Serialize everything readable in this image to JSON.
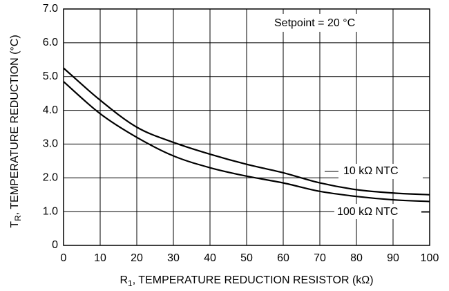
{
  "chart_data": {
    "type": "line",
    "annotation": "Setpoint = 20 °C",
    "x_label": {
      "main": "R",
      "sub": "1",
      "rest": ", TEMPERATURE REDUCTION RESISTOR (kΩ)"
    },
    "y_label": {
      "main": "T",
      "sub": "R",
      "rest": ", TEMPERATURE REDUCTION (°C)"
    },
    "x": [
      0,
      10,
      20,
      30,
      40,
      50,
      60,
      70,
      80,
      90,
      100
    ],
    "series": [
      {
        "name": "10 kΩ NTC",
        "color": "#000000",
        "values": [
          5.25,
          4.3,
          3.5,
          3.05,
          2.7,
          2.4,
          2.15,
          1.85,
          1.65,
          1.55,
          1.5
        ]
      },
      {
        "name": "100 kΩ NTC",
        "color": "#000000",
        "values": [
          4.85,
          3.9,
          3.2,
          2.65,
          2.3,
          2.05,
          1.85,
          1.6,
          1.45,
          1.35,
          1.3
        ]
      }
    ],
    "xlim": [
      0,
      100
    ],
    "xticks": [
      0,
      10,
      20,
      30,
      40,
      50,
      60,
      70,
      80,
      90,
      100
    ],
    "ylim": [
      0,
      7
    ],
    "yticks": [
      0,
      {
        "value": 1,
        "label": "1.0"
      },
      {
        "value": 2,
        "label": "2.0"
      },
      {
        "value": 3,
        "label": "3.0"
      },
      {
        "value": 4,
        "label": "4.0"
      },
      {
        "value": 5,
        "label": "5.0"
      },
      {
        "value": 6,
        "label": "6.0"
      },
      {
        "value": 7,
        "label": "7.0"
      }
    ],
    "grid": true
  }
}
